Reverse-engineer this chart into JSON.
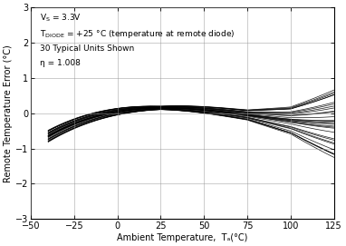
{
  "title": "",
  "xlabel": "Ambient Temperature,  Tₐ(°C)",
  "ylabel": "Remote Temperature Error (°C)",
  "xlim": [
    -50,
    125
  ],
  "ylim": [
    -3,
    3
  ],
  "xticks": [
    -50,
    -25,
    0,
    25,
    50,
    75,
    100,
    125
  ],
  "yticks": [
    -3,
    -2,
    -1,
    0,
    1,
    2,
    3
  ],
  "n_curves": 30,
  "background_color": "#ffffff",
  "line_color": "#000000",
  "grid_color": "#888888"
}
